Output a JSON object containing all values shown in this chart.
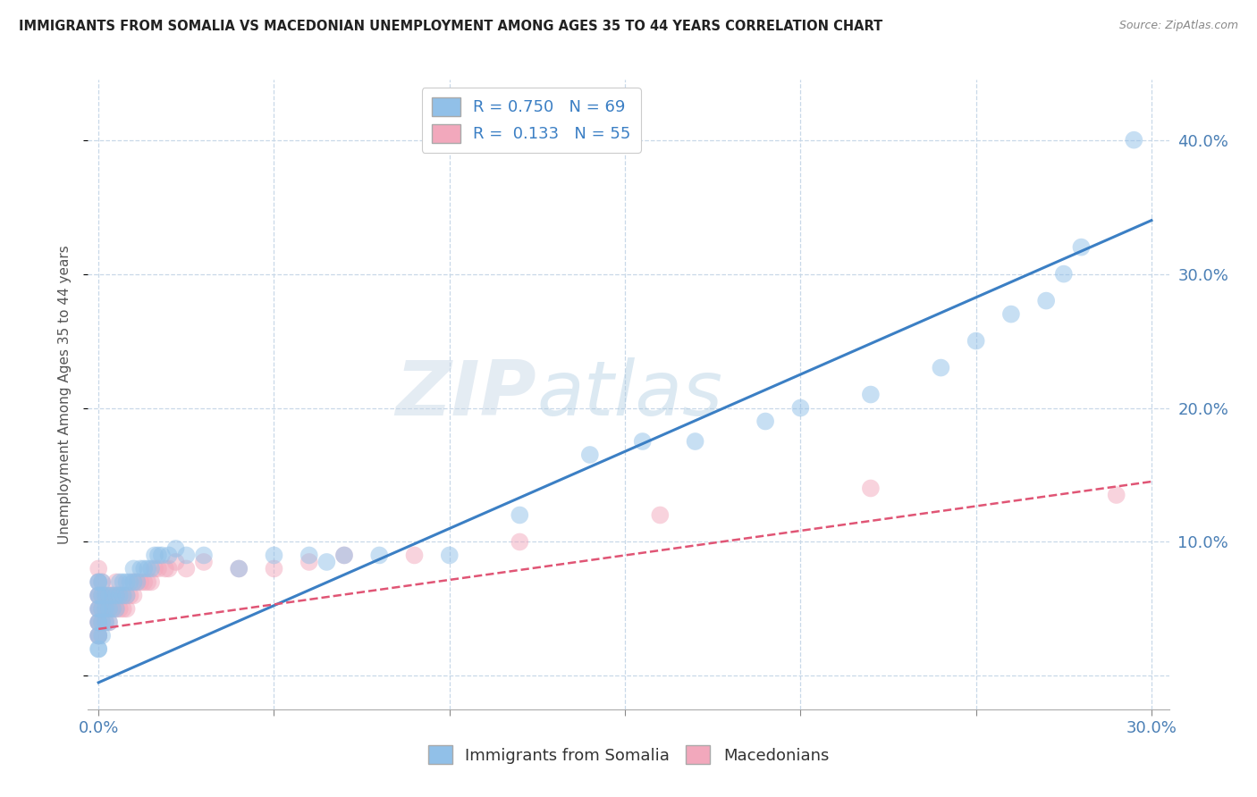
{
  "title": "IMMIGRANTS FROM SOMALIA VS MACEDONIAN UNEMPLOYMENT AMONG AGES 35 TO 44 YEARS CORRELATION CHART",
  "source": "Source: ZipAtlas.com",
  "ylabel": "Unemployment Among Ages 35 to 44 years",
  "watermark_zip": "ZIP",
  "watermark_atlas": "atlas",
  "xlim": [
    -0.003,
    0.305
  ],
  "ylim": [
    -0.025,
    0.445
  ],
  "somalia_color": "#91c0e8",
  "macedonian_color": "#f2a8bc",
  "somalia_line_color": "#3b7fc4",
  "macedonian_line_color": "#e05575",
  "background_color": "#ffffff",
  "grid_color": "#c8d8e8",
  "somalia_line": {
    "x0": 0.0,
    "y0": -0.005,
    "x1": 0.3,
    "y1": 0.34
  },
  "macedonian_line": {
    "x0": 0.0,
    "y0": 0.035,
    "x1": 0.3,
    "y1": 0.145
  },
  "somalia_x": [
    0.0,
    0.0,
    0.0,
    0.0,
    0.0,
    0.0,
    0.0,
    0.0,
    0.0,
    0.0,
    0.0,
    0.0,
    0.001,
    0.001,
    0.001,
    0.001,
    0.001,
    0.002,
    0.002,
    0.002,
    0.003,
    0.003,
    0.003,
    0.004,
    0.004,
    0.005,
    0.005,
    0.006,
    0.006,
    0.007,
    0.007,
    0.008,
    0.008,
    0.009,
    0.01,
    0.01,
    0.011,
    0.012,
    0.013,
    0.014,
    0.015,
    0.016,
    0.017,
    0.018,
    0.02,
    0.022,
    0.025,
    0.03,
    0.04,
    0.05,
    0.06,
    0.065,
    0.07,
    0.08,
    0.1,
    0.12,
    0.14,
    0.155,
    0.17,
    0.19,
    0.2,
    0.22,
    0.24,
    0.25,
    0.26,
    0.27,
    0.275,
    0.28,
    0.295
  ],
  "somalia_y": [
    0.02,
    0.02,
    0.03,
    0.03,
    0.04,
    0.04,
    0.05,
    0.05,
    0.06,
    0.06,
    0.07,
    0.07,
    0.03,
    0.04,
    0.05,
    0.06,
    0.07,
    0.04,
    0.05,
    0.06,
    0.04,
    0.05,
    0.06,
    0.05,
    0.06,
    0.05,
    0.06,
    0.06,
    0.07,
    0.06,
    0.07,
    0.06,
    0.07,
    0.07,
    0.07,
    0.08,
    0.07,
    0.08,
    0.08,
    0.08,
    0.08,
    0.09,
    0.09,
    0.09,
    0.09,
    0.095,
    0.09,
    0.09,
    0.08,
    0.09,
    0.09,
    0.085,
    0.09,
    0.09,
    0.09,
    0.12,
    0.165,
    0.175,
    0.175,
    0.19,
    0.2,
    0.21,
    0.23,
    0.25,
    0.27,
    0.28,
    0.3,
    0.32,
    0.4
  ],
  "macedonian_x": [
    0.0,
    0.0,
    0.0,
    0.0,
    0.0,
    0.0,
    0.0,
    0.0,
    0.0,
    0.0,
    0.001,
    0.001,
    0.001,
    0.001,
    0.002,
    0.002,
    0.002,
    0.003,
    0.003,
    0.003,
    0.004,
    0.004,
    0.005,
    0.005,
    0.005,
    0.006,
    0.006,
    0.007,
    0.007,
    0.008,
    0.008,
    0.009,
    0.01,
    0.01,
    0.011,
    0.012,
    0.013,
    0.014,
    0.015,
    0.016,
    0.017,
    0.019,
    0.02,
    0.022,
    0.025,
    0.03,
    0.04,
    0.05,
    0.06,
    0.07,
    0.09,
    0.12,
    0.16,
    0.22,
    0.29
  ],
  "macedonian_y": [
    0.03,
    0.03,
    0.04,
    0.04,
    0.05,
    0.05,
    0.06,
    0.06,
    0.07,
    0.08,
    0.04,
    0.05,
    0.06,
    0.07,
    0.04,
    0.05,
    0.06,
    0.04,
    0.05,
    0.06,
    0.05,
    0.06,
    0.05,
    0.06,
    0.07,
    0.05,
    0.06,
    0.05,
    0.06,
    0.05,
    0.06,
    0.06,
    0.06,
    0.07,
    0.07,
    0.07,
    0.07,
    0.07,
    0.07,
    0.08,
    0.08,
    0.08,
    0.08,
    0.085,
    0.08,
    0.085,
    0.08,
    0.08,
    0.085,
    0.09,
    0.09,
    0.1,
    0.12,
    0.14,
    0.135
  ]
}
